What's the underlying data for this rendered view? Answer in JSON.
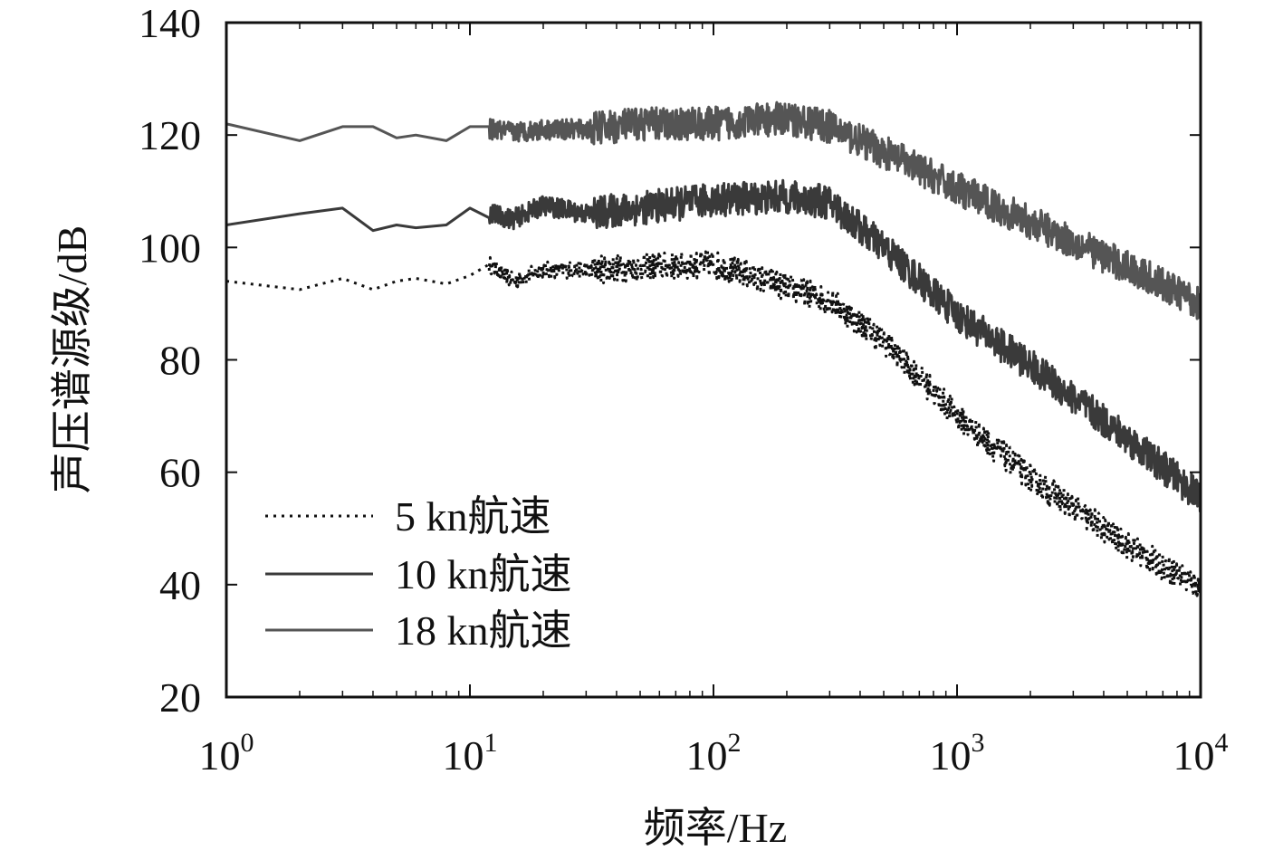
{
  "chart_data": {
    "type": "line",
    "title": "",
    "xlabel": "频率/Hz",
    "ylabel": "声压谱源级/dB",
    "xscale": "log",
    "xlim": [
      1,
      10000
    ],
    "ylim": [
      20,
      140
    ],
    "xticks": [
      {
        "base": "10",
        "exp": "0"
      },
      {
        "base": "10",
        "exp": "1"
      },
      {
        "base": "10",
        "exp": "2"
      },
      {
        "base": "10",
        "exp": "3"
      },
      {
        "base": "10",
        "exp": "4"
      }
    ],
    "yticks": [
      "20",
      "40",
      "60",
      "80",
      "100",
      "120",
      "140"
    ],
    "grid": false,
    "legend_position": "bottom-left",
    "series": [
      {
        "name": "5 kn航速",
        "style": "dotted",
        "color": "#111111",
        "x": [
          1,
          2,
          3,
          4,
          5,
          6,
          8,
          10,
          12,
          15,
          20,
          30,
          50,
          100,
          200,
          300,
          500,
          1000,
          2000,
          5000,
          10000
        ],
        "y": [
          94,
          92.5,
          94.5,
          92.5,
          94,
          94.5,
          93.5,
          95,
          97,
          94,
          96,
          96,
          96.5,
          97,
          93,
          90.5,
          83.5,
          70,
          59,
          47,
          39.5
        ],
        "noise": 2.5
      },
      {
        "name": "10 kn航速",
        "style": "solid",
        "color": "#3a3a3a",
        "x": [
          1,
          2,
          3,
          4,
          5,
          6,
          8,
          10,
          15,
          20,
          30,
          50,
          100,
          200,
          300,
          500,
          1000,
          2000,
          5000,
          10000
        ],
        "y": [
          104,
          106,
          107,
          103,
          104,
          103.5,
          104,
          107,
          105,
          107.5,
          106,
          107,
          108.5,
          109,
          108,
          100,
          88,
          79,
          66,
          55.5
        ],
        "noise": 3
      },
      {
        "name": "18 kn航速",
        "style": "solid",
        "color": "#555555",
        "x": [
          1,
          2,
          3,
          4,
          5,
          6,
          8,
          10,
          15,
          20,
          30,
          50,
          100,
          200,
          300,
          500,
          1000,
          2000,
          5000,
          10000
        ],
        "y": [
          122,
          119,
          121.5,
          121.5,
          119.5,
          120,
          119,
          121.5,
          120.5,
          121,
          121,
          122,
          122,
          123,
          121.5,
          117,
          110.5,
          104.5,
          96.5,
          90
        ],
        "noise": 3
      }
    ]
  }
}
